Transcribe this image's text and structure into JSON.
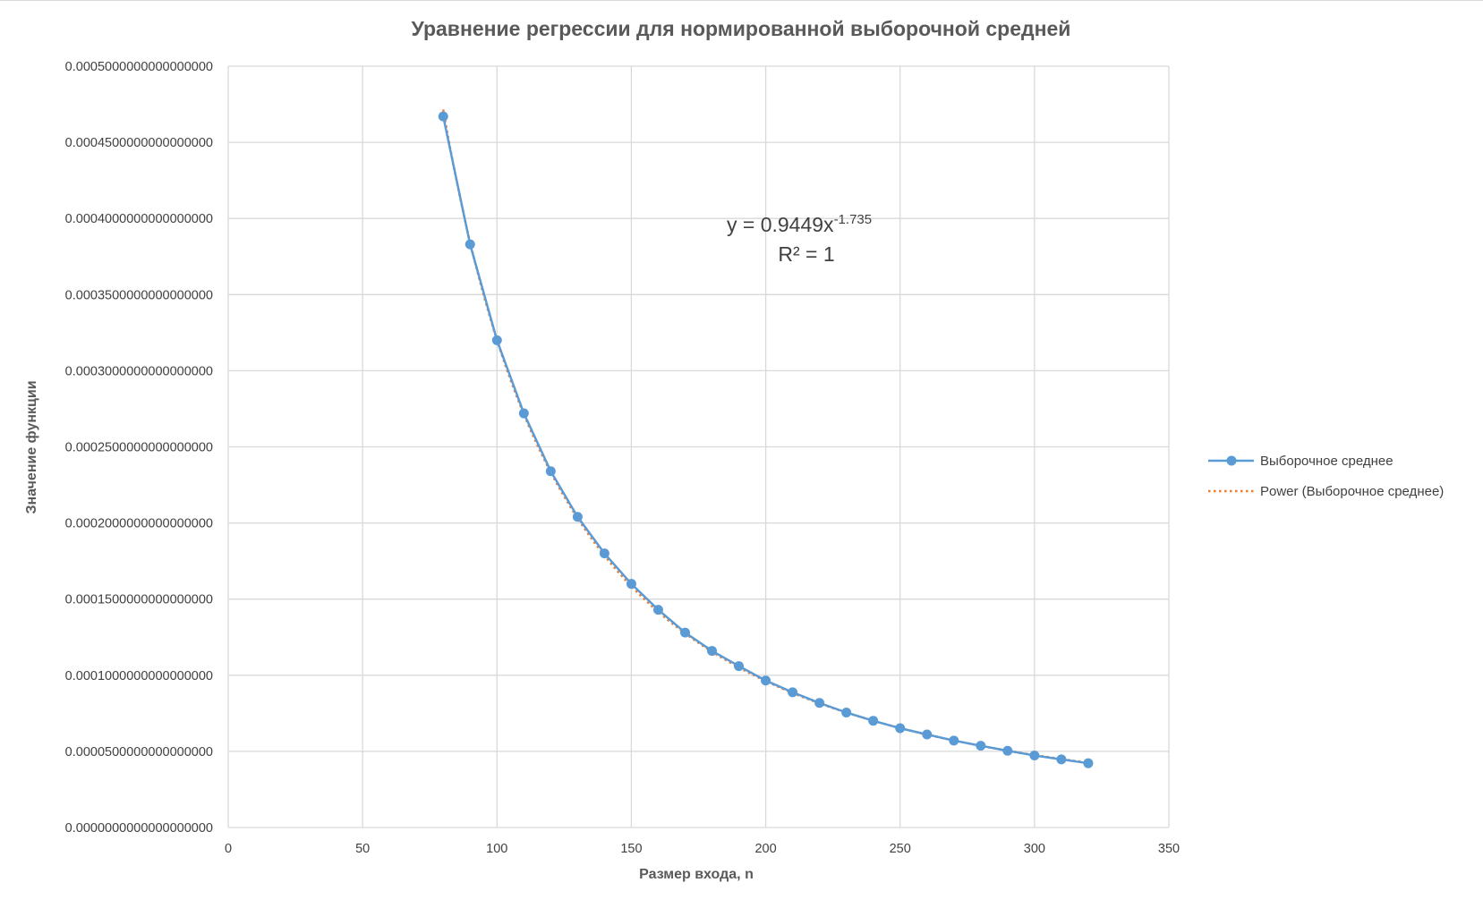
{
  "chart_data": {
    "type": "scatter",
    "title": "Уравнение регрессии для нормированной выборочной средней",
    "xlabel": "Размер входа, n",
    "ylabel": "Значение функции",
    "xlim": [
      0,
      350
    ],
    "ylim": [
      0,
      0.0005
    ],
    "x_ticks": [
      "0",
      "50",
      "100",
      "150",
      "200",
      "250",
      "300",
      "350"
    ],
    "y_ticks": [
      "0.0000000000000000000",
      "0.0000500000000000000",
      "0.0001000000000000000",
      "0.0001500000000000000",
      "0.0002000000000000000",
      "0.0002500000000000000",
      "0.0003000000000000000",
      "0.0003500000000000000",
      "0.0004000000000000000",
      "0.0004500000000000000",
      "0.0005000000000000000"
    ],
    "grid": true,
    "legend_position": "right",
    "series": [
      {
        "name": "Выборочное среднее",
        "style": "line-markers",
        "color": "#5b9bd5",
        "x": [
          80,
          90,
          100,
          110,
          120,
          130,
          140,
          150,
          160,
          170,
          180,
          190,
          200,
          210,
          220,
          230,
          240,
          250,
          260,
          270,
          280,
          290,
          300,
          310,
          320
        ],
        "y": [
          0.000467,
          0.000383,
          0.00032,
          0.000272,
          0.000234,
          0.000204,
          0.00018,
          0.00016,
          0.000143,
          0.000128,
          0.000116,
          0.000106,
          9.65e-05,
          8.88e-05,
          8.18e-05,
          7.55e-05,
          7.01e-05,
          6.52e-05,
          6.11e-05,
          5.71e-05,
          5.37e-05,
          5.04e-05,
          4.73e-05,
          4.47e-05,
          4.22e-05
        ]
      },
      {
        "name": "Power (Выборочное среднее)",
        "style": "dotted-trendline",
        "color": "#ed7d31",
        "equation": {
          "a": 0.9449,
          "b": -1.735
        },
        "x_range": [
          80,
          320
        ]
      }
    ],
    "annotation": {
      "equation_base": "y = 0.9449x",
      "equation_exp": "-1.735",
      "r_squared": "R² = 1"
    }
  }
}
